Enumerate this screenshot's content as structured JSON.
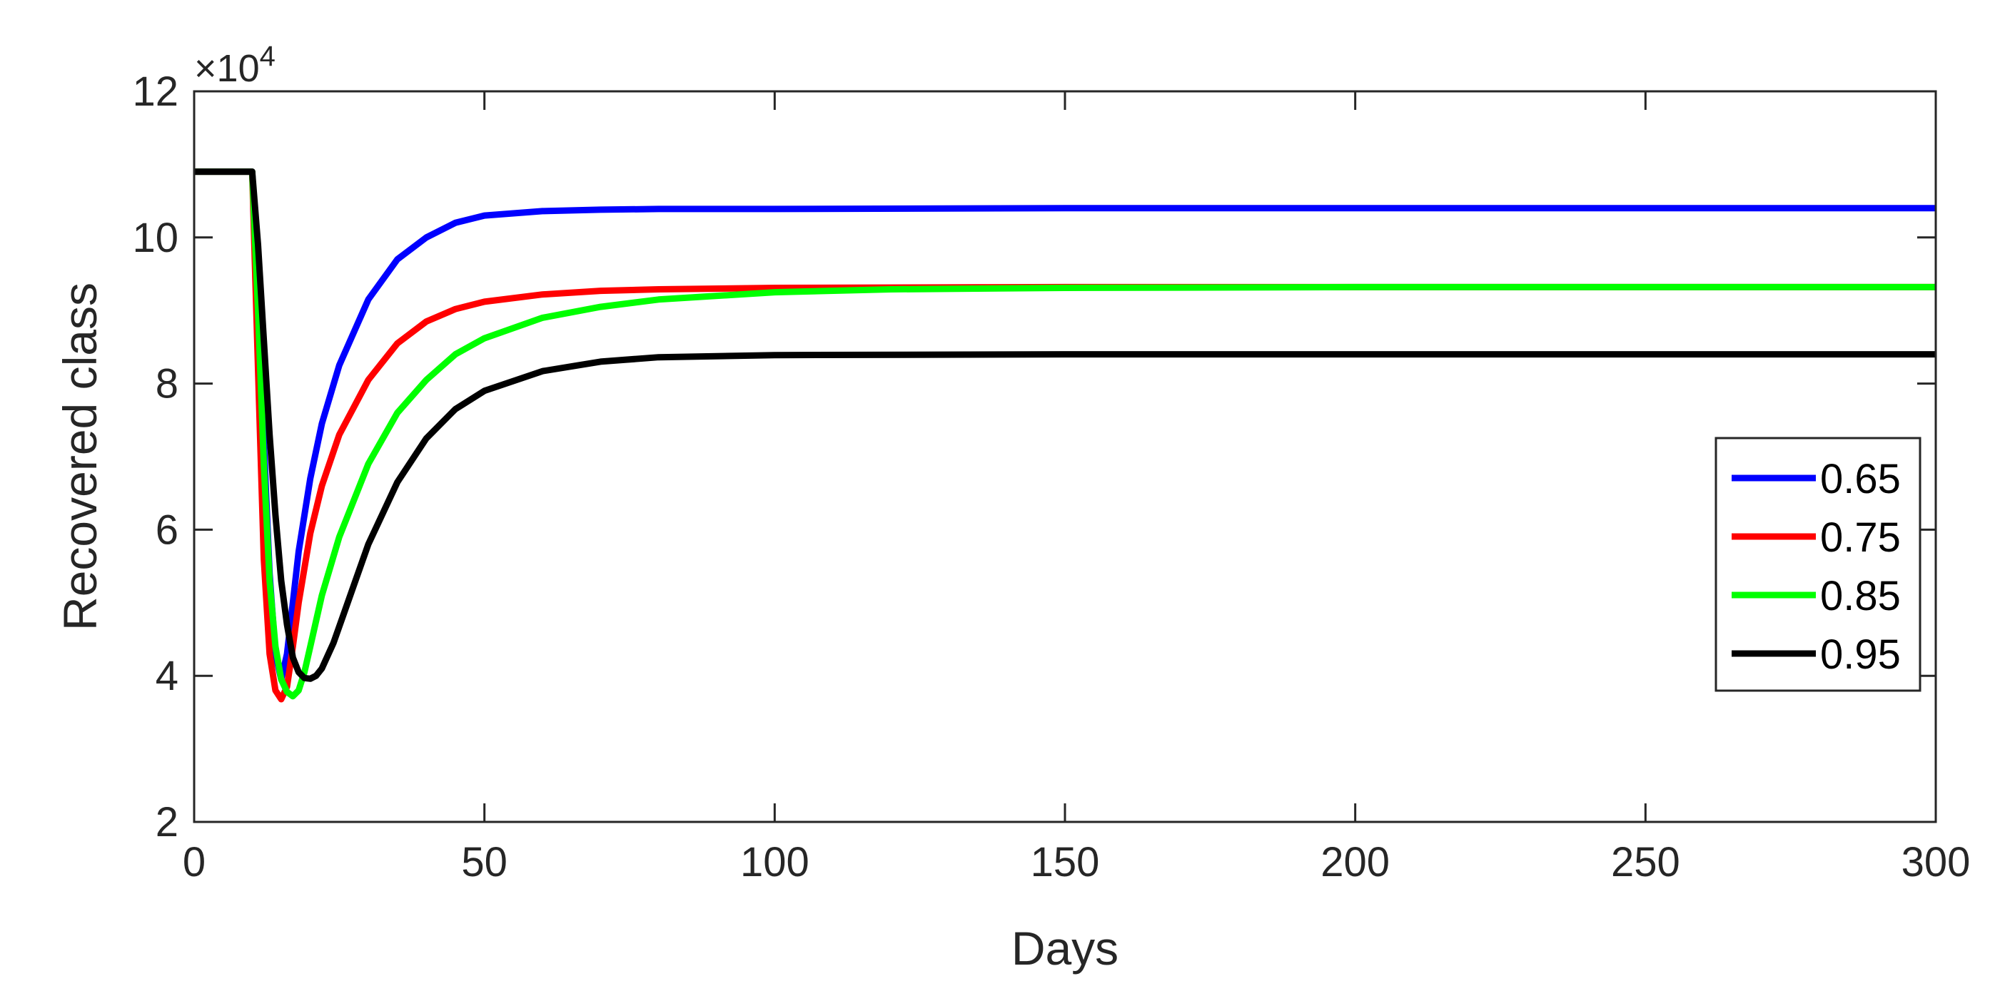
{
  "chart_data": {
    "type": "line",
    "title": "",
    "xlabel": "Days",
    "ylabel": "Recovered class",
    "y_multiplier": "×10",
    "y_multiplier_exponent": "4",
    "xlim": [
      0,
      300
    ],
    "ylim": [
      2,
      12
    ],
    "xticks": [
      0,
      50,
      100,
      150,
      200,
      250,
      300
    ],
    "yticks": [
      2,
      4,
      6,
      8,
      10,
      12
    ],
    "grid": false,
    "legend_position": "center-right",
    "series": [
      {
        "name": "0.65",
        "color": "#0000ff",
        "x": [
          0,
          10,
          11,
          12,
          13,
          14,
          15,
          16,
          17,
          18,
          20,
          22,
          25,
          30,
          35,
          40,
          45,
          50,
          60,
          70,
          80,
          100,
          150,
          200,
          250,
          300
        ],
        "y": [
          10.9,
          10.9,
          9.3,
          7.2,
          5.4,
          4.3,
          3.95,
          4.3,
          5.0,
          5.7,
          6.7,
          7.45,
          8.25,
          9.15,
          9.7,
          10.0,
          10.2,
          10.3,
          10.36,
          10.38,
          10.39,
          10.39,
          10.4,
          10.4,
          10.4,
          10.4
        ]
      },
      {
        "name": "0.75",
        "color": "#ff0000",
        "x": [
          0,
          10,
          11,
          12,
          13,
          14,
          15,
          16,
          17,
          18,
          20,
          22,
          25,
          30,
          35,
          40,
          45,
          50,
          60,
          70,
          80,
          100,
          150,
          200,
          250,
          300
        ],
        "y": [
          10.9,
          10.9,
          8.2,
          5.6,
          4.3,
          3.8,
          3.68,
          3.85,
          4.4,
          5.0,
          5.95,
          6.6,
          7.3,
          8.05,
          8.55,
          8.85,
          9.02,
          9.12,
          9.22,
          9.27,
          9.29,
          9.31,
          9.32,
          9.32,
          9.32,
          9.32
        ]
      },
      {
        "name": "0.85",
        "color": "#00ff00",
        "x": [
          0,
          10,
          11,
          12,
          13,
          14,
          15,
          16,
          17,
          18,
          19,
          20,
          22,
          25,
          30,
          35,
          40,
          45,
          50,
          60,
          70,
          80,
          100,
          120,
          150,
          200,
          250,
          300
        ],
        "y": [
          10.9,
          10.9,
          9.0,
          6.9,
          5.3,
          4.4,
          3.95,
          3.78,
          3.72,
          3.8,
          4.05,
          4.4,
          5.1,
          5.9,
          6.9,
          7.6,
          8.05,
          8.4,
          8.62,
          8.9,
          9.05,
          9.15,
          9.25,
          9.29,
          9.31,
          9.32,
          9.32,
          9.32
        ]
      },
      {
        "name": "0.95",
        "color": "#000000",
        "x": [
          0,
          10,
          11,
          12,
          13,
          14,
          15,
          16,
          17,
          18,
          19,
          20,
          21,
          22,
          24,
          26,
          28,
          30,
          35,
          40,
          45,
          50,
          60,
          70,
          80,
          100,
          150,
          200,
          250,
          300
        ],
        "y": [
          10.9,
          10.9,
          9.9,
          8.6,
          7.3,
          6.2,
          5.3,
          4.7,
          4.25,
          4.05,
          3.97,
          3.96,
          4.0,
          4.1,
          4.45,
          4.9,
          5.35,
          5.8,
          6.65,
          7.25,
          7.65,
          7.9,
          8.17,
          8.3,
          8.36,
          8.39,
          8.4,
          8.4,
          8.4,
          8.4
        ]
      }
    ]
  }
}
